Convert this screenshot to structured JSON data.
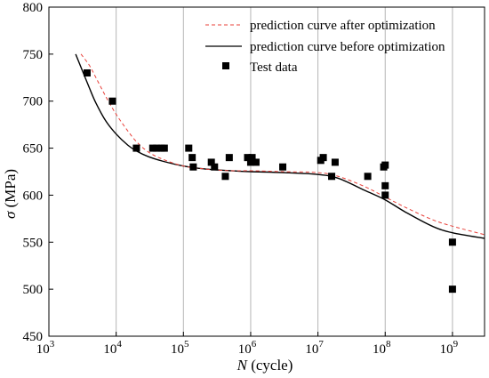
{
  "chart_data": {
    "type": "scatter",
    "title": "",
    "xlabel": {
      "symbol": "N",
      "unit": " (cycle)"
    },
    "ylabel": {
      "symbol": "σ",
      "unit": " (MPa)"
    },
    "xscale": "log",
    "xlim": [
      1000,
      3000000000
    ],
    "ylim": [
      450,
      800
    ],
    "xticks": [
      {
        "value": 1000,
        "base": "10",
        "exp": "3"
      },
      {
        "value": 10000,
        "base": "10",
        "exp": "4"
      },
      {
        "value": 100000,
        "base": "10",
        "exp": "5"
      },
      {
        "value": 1000000,
        "base": "10",
        "exp": "6"
      },
      {
        "value": 10000000,
        "base": "10",
        "exp": "7"
      },
      {
        "value": 100000000,
        "base": "10",
        "exp": "8"
      },
      {
        "value": 1000000000,
        "base": "10",
        "exp": "9"
      }
    ],
    "yticks": [
      "450",
      "500",
      "550",
      "600",
      "650",
      "700",
      "750",
      "800"
    ],
    "grid": "vertical lines at decades",
    "legend_position": "top-right",
    "series": [
      {
        "name": "prediction curve after optimization",
        "style": "dashed",
        "color": "#e8403a",
        "x": [
          3000,
          4000,
          5000,
          7000,
          10000,
          15000,
          20000,
          30000,
          50000,
          100000,
          200000,
          500000,
          1000000,
          3000000,
          10000000,
          20000000,
          50000000,
          100000000,
          200000000,
          500000000,
          1000000000,
          3000000000
        ],
        "y": [
          750,
          738,
          725,
          705,
          686,
          668,
          657,
          646,
          638,
          631,
          628,
          626,
          626,
          625,
          624,
          620,
          609,
          598,
          587,
          574,
          567,
          558
        ]
      },
      {
        "name": "prediction curve before optimization",
        "style": "solid",
        "color": "#000000",
        "x": [
          2500,
          3000,
          4000,
          5000,
          7000,
          10000,
          15000,
          20000,
          30000,
          50000,
          100000,
          200000,
          500000,
          1000000,
          3000000,
          10000000,
          20000000,
          50000000,
          100000000,
          200000000,
          500000000,
          1000000000,
          3000000000
        ],
        "y": [
          750,
          736,
          714,
          698,
          679,
          665,
          653,
          647,
          641,
          636,
          631,
          628,
          626,
          625,
          624,
          622,
          618,
          605,
          595,
          582,
          567,
          560,
          554
        ]
      },
      {
        "name": "Test data",
        "style": "markers",
        "color": "#000000",
        "points": [
          [
            3700,
            730
          ],
          [
            8800,
            700
          ],
          [
            20000,
            650
          ],
          [
            35000,
            650
          ],
          [
            40000,
            650
          ],
          [
            47000,
            650
          ],
          [
            52000,
            650
          ],
          [
            120000,
            650
          ],
          [
            135000,
            640
          ],
          [
            140000,
            630
          ],
          [
            260000,
            635
          ],
          [
            290000,
            630
          ],
          [
            420000,
            620
          ],
          [
            480000,
            640
          ],
          [
            900000,
            640
          ],
          [
            1000000,
            635
          ],
          [
            1050000,
            640
          ],
          [
            1200000,
            635
          ],
          [
            3000000,
            630
          ],
          [
            11000000,
            637
          ],
          [
            12000000,
            640
          ],
          [
            16000000,
            620
          ],
          [
            18000000,
            635
          ],
          [
            55000000,
            620
          ],
          [
            95000000,
            630
          ],
          [
            100000000,
            600
          ],
          [
            100000000,
            632
          ],
          [
            100000000,
            610
          ],
          [
            1000000000,
            550
          ],
          [
            1000000000,
            500
          ]
        ]
      }
    ]
  }
}
